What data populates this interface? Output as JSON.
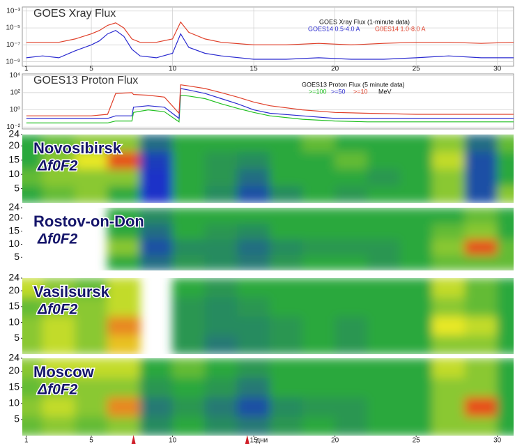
{
  "chart_data": [
    {
      "type": "line",
      "title": "GOES Xray Flux",
      "legend_title": "GOES  Xray Flux (1-minute data)",
      "log_y": true,
      "grid": true,
      "xlim": [
        0.75,
        31
      ],
      "xticks": [
        1,
        5,
        10,
        15,
        20,
        25,
        30
      ],
      "ylim": [
        3e-10,
        0.003
      ],
      "yticks": [
        {
          "value": 1e-09,
          "label": "10⁻⁹"
        },
        {
          "value": 1e-07,
          "label": "10⁻⁷"
        },
        {
          "value": 1e-05,
          "label": "10⁻⁵"
        },
        {
          "value": 0.001,
          "label": "10⁻³"
        }
      ],
      "x": [
        1,
        2,
        3,
        4,
        5,
        5.5,
        6,
        6.5,
        7,
        7.5,
        8,
        9,
        10,
        10.5,
        11,
        12,
        13,
        15,
        17,
        19,
        21,
        23,
        25,
        27,
        29,
        31
      ],
      "series": [
        {
          "name": "GOES14  0.5-4.0 A",
          "color": "#2b2bd0",
          "values": [
            3e-09,
            5e-09,
            3e-09,
            2e-08,
            1e-07,
            3e-07,
            2e-06,
            5e-06,
            1e-06,
            3e-08,
            5e-09,
            3e-09,
            1e-08,
            2e-06,
            5e-08,
            1e-08,
            5e-09,
            2e-09,
            2e-09,
            3e-09,
            2e-09,
            2e-09,
            3e-09,
            5e-09,
            3e-09,
            3e-09
          ]
        },
        {
          "name": "G0ES14  1.0-8.0 A",
          "color": "#e0402a",
          "values": [
            2e-07,
            2e-07,
            2e-07,
            5e-07,
            2e-06,
            5e-06,
            2e-05,
            4e-05,
            1e-05,
            5e-07,
            2e-07,
            2e-07,
            5e-07,
            5e-05,
            3e-06,
            5e-07,
            2e-07,
            1e-07,
            1e-07,
            1.5e-07,
            1e-07,
            1.5e-07,
            2e-07,
            2e-07,
            1.5e-07,
            2e-07
          ]
        }
      ]
    },
    {
      "type": "line",
      "title": "GOES13 Proton Flux",
      "legend_title": "GOES13  Proton Flux (5 minute data)",
      "legend_unit": "MeV",
      "log_y": true,
      "grid": true,
      "xlim": [
        0.75,
        31
      ],
      "ylim": [
        0.006,
        15000
      ],
      "yticks": [
        {
          "value": 0.01,
          "label": "10⁻²"
        },
        {
          "value": 1,
          "label": "10⁰"
        },
        {
          "value": 100,
          "label": "10²"
        },
        {
          "value": 10000,
          "label": "10⁴"
        }
      ],
      "x": [
        1,
        3,
        5,
        6,
        6.5,
        7.5,
        7.6,
        8.5,
        9.5,
        10.4,
        10.5,
        11,
        12,
        13,
        14,
        15,
        16,
        18,
        20,
        22,
        25,
        28,
        31
      ],
      "series": [
        {
          "name": ">=100",
          "color": "#22c022",
          "values": [
            0.03,
            0.03,
            0.03,
            0.03,
            0.05,
            0.05,
            0.5,
            1,
            0.6,
            0.04,
            50,
            40,
            20,
            5,
            1.5,
            0.5,
            0.2,
            0.08,
            0.05,
            0.04,
            0.04,
            0.04,
            0.04
          ]
        },
        {
          "name": ">=50",
          "color": "#2b2bd0",
          "values": [
            0.1,
            0.1,
            0.1,
            0.1,
            0.2,
            0.2,
            2,
            3,
            2,
            0.1,
            300,
            200,
            80,
            20,
            5,
            1,
            0.4,
            0.2,
            0.1,
            0.1,
            0.1,
            0.1,
            0.1
          ]
        },
        {
          "name": ">=10",
          "color": "#e0402a",
          "values": [
            0.2,
            0.2,
            0.2,
            0.3,
            80,
            100,
            60,
            50,
            30,
            0.4,
            800,
            600,
            300,
            100,
            30,
            8,
            3,
            1,
            0.5,
            0.4,
            0.3,
            0.3,
            0.3
          ]
        }
      ]
    },
    {
      "type": "heatmap",
      "title": "Novosibirsk",
      "subtitle": "Δf0F2",
      "xlim": [
        0.75,
        31
      ],
      "ylim": [
        0,
        24
      ],
      "yticks": [
        5,
        10,
        15,
        20,
        24
      ],
      "color_stops": [
        -2,
        0,
        1,
        2
      ],
      "colors": [
        "#1a32c8",
        "#2ca83c",
        "#e8e826",
        "#e8281a"
      ],
      "x": [
        1,
        3,
        5,
        7,
        9,
        11,
        13,
        15,
        17,
        19,
        21,
        23,
        25,
        27,
        29,
        31
      ],
      "y": [
        3,
        9,
        15,
        21
      ],
      "values": [
        [
          0,
          0.3,
          0.5,
          0,
          -2,
          0,
          -0.5,
          -1.5,
          -0.5,
          0,
          -0.3,
          0,
          0,
          0.5,
          -1.5,
          0.5
        ],
        [
          0.3,
          0.5,
          0.5,
          0.5,
          -2,
          0,
          -0.3,
          -1,
          0,
          0,
          0,
          -0.3,
          0,
          0.5,
          -1.5,
          0
        ],
        [
          0,
          0.5,
          1,
          1.8,
          -1.8,
          0,
          -0.3,
          -0.5,
          0,
          0,
          0.3,
          0,
          0,
          0.8,
          -1.5,
          0
        ],
        [
          0,
          0.3,
          0.5,
          0.5,
          -1,
          0,
          0,
          0,
          0,
          0.3,
          0,
          0,
          0,
          0.5,
          -1,
          0.3
        ]
      ]
    },
    {
      "type": "heatmap",
      "title": "Rostov-on-Don",
      "subtitle": "Δf0F2",
      "xlim": [
        0.75,
        31
      ],
      "ylim": [
        0,
        24
      ],
      "yticks": [
        5,
        10,
        15,
        20,
        24
      ],
      "color_stops": [
        -2,
        0,
        1,
        2
      ],
      "colors": [
        "#1a32c8",
        "#2ca83c",
        "#e8e826",
        "#e8281a"
      ],
      "x": [
        1,
        3,
        5,
        7,
        9,
        11,
        13,
        15,
        17,
        19,
        21,
        23,
        25,
        27,
        29,
        31
      ],
      "y": [
        3,
        9,
        15,
        21
      ],
      "values": [
        [
          null,
          null,
          null,
          0,
          -1,
          -0.3,
          -0.5,
          -0.8,
          -0.3,
          0,
          0,
          -0.3,
          0,
          0.3,
          0.3,
          0.3
        ],
        [
          null,
          null,
          null,
          0.5,
          -1.5,
          -0.5,
          -0.5,
          -1,
          -0.5,
          -0.3,
          -0.3,
          -0.3,
          0,
          0.5,
          1.8,
          0.3
        ],
        [
          null,
          null,
          null,
          0,
          -1,
          0,
          -0.3,
          -0.5,
          0,
          0,
          0,
          0,
          0,
          0.3,
          0.5,
          0
        ],
        [
          null,
          null,
          null,
          0,
          -0.5,
          0,
          0,
          0,
          0,
          0,
          0,
          0,
          0,
          0,
          0.3,
          0
        ]
      ]
    },
    {
      "type": "heatmap",
      "title": "Vasilsursk",
      "subtitle": "Δf0F2",
      "xlim": [
        0.75,
        31
      ],
      "ylim": [
        0,
        24
      ],
      "yticks": [
        5,
        10,
        15,
        20,
        24
      ],
      "color_stops": [
        -2,
        0,
        1,
        2
      ],
      "colors": [
        "#1a32c8",
        "#2ca83c",
        "#e8e826",
        "#e8281a"
      ],
      "x": [
        1,
        3,
        5,
        7,
        9,
        11,
        13,
        15,
        17,
        19,
        21,
        23,
        25,
        27,
        29,
        31
      ],
      "y": [
        3,
        9,
        15,
        21
      ],
      "values": [
        [
          0.5,
          0.8,
          0.5,
          1.2,
          null,
          -0.3,
          -0.8,
          -0.5,
          -0.3,
          0,
          -0.3,
          0,
          0,
          0.5,
          0.5,
          0
        ],
        [
          0.5,
          0.8,
          0.5,
          1.5,
          null,
          -0.3,
          -0.5,
          -0.5,
          -0.3,
          0,
          -0.3,
          0,
          0,
          1,
          0.8,
          0
        ],
        [
          0.3,
          0.5,
          0.5,
          0.8,
          null,
          -0.3,
          -0.5,
          -0.3,
          0,
          0,
          0,
          0,
          0,
          0.5,
          0.3,
          0
        ],
        [
          0.8,
          0.5,
          0.3,
          0.8,
          null,
          0,
          -0.3,
          0,
          0,
          0,
          0,
          0,
          0,
          0.8,
          0.3,
          0
        ]
      ]
    },
    {
      "type": "heatmap",
      "title": "Moscow",
      "subtitle": "Δf0F2",
      "xlim": [
        0.75,
        31
      ],
      "ylim": [
        0,
        24
      ],
      "yticks": [
        5,
        10,
        15,
        20,
        24
      ],
      "color_stops": [
        -2,
        0,
        1,
        2
      ],
      "colors": [
        "#1a32c8",
        "#2ca83c",
        "#e8e826",
        "#e8281a"
      ],
      "x": [
        1,
        3,
        5,
        7,
        9,
        11,
        13,
        15,
        17,
        19,
        21,
        23,
        25,
        27,
        29,
        31
      ],
      "y": [
        3,
        9,
        15,
        21
      ],
      "xticks": [
        1,
        5,
        10,
        15,
        20,
        25,
        30
      ],
      "x_label": "дни",
      "event_days": [
        7.6,
        14.6
      ],
      "values": [
        [
          0.3,
          0.5,
          0.3,
          0.5,
          -0.5,
          0,
          -0.5,
          -0.8,
          -0.3,
          0,
          -0.3,
          0,
          0,
          0.5,
          0.5,
          0
        ],
        [
          0.5,
          0.8,
          0.5,
          1.5,
          -0.8,
          -0.3,
          -0.8,
          -1.5,
          -0.5,
          -0.3,
          -0.3,
          0,
          0,
          0.5,
          1.8,
          0
        ],
        [
          0.3,
          0.5,
          0.5,
          0.5,
          -0.3,
          0,
          -0.3,
          -0.8,
          0,
          0,
          0,
          0,
          0,
          0.5,
          0.5,
          0
        ],
        [
          0.5,
          0.8,
          0.8,
          0.8,
          0,
          0.3,
          0,
          -0.3,
          0,
          0,
          0,
          0,
          0,
          0.8,
          0.5,
          0
        ]
      ]
    }
  ]
}
